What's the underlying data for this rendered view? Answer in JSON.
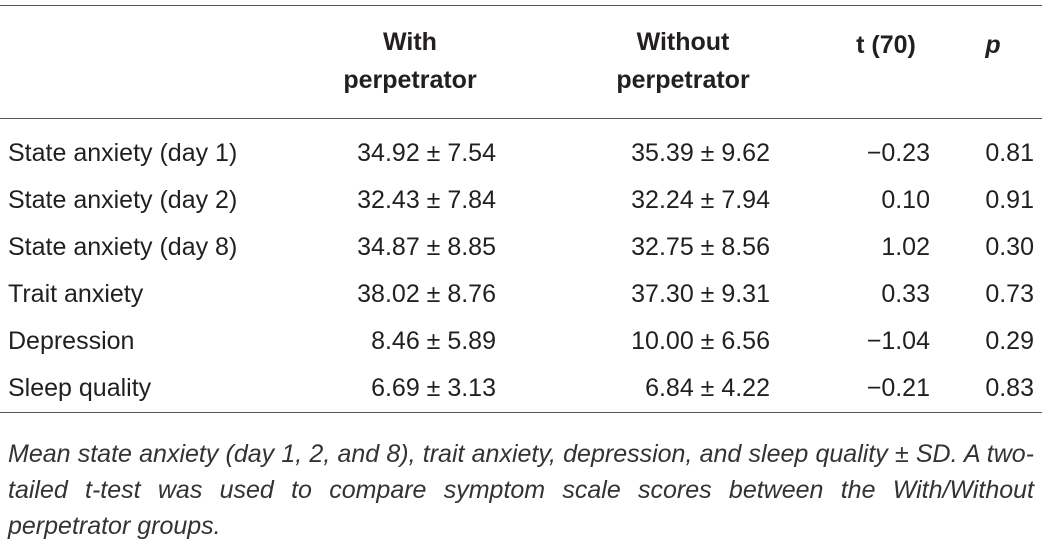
{
  "table": {
    "header": [
      "",
      "With perpetrator",
      "Without perpetrator",
      "t (70)",
      "p"
    ],
    "rows": [
      [
        "State anxiety (day 1)",
        "34.92 ± 7.54",
        "35.39 ± 9.62",
        "−0.23",
        "0.81"
      ],
      [
        "State anxiety (day 2)",
        "32.43 ± 7.84",
        "32.24 ± 7.94",
        "0.10",
        "0.91"
      ],
      [
        "State anxiety (day 8)",
        "34.87 ± 8.85",
        "32.75 ± 8.56",
        "1.02",
        "0.30"
      ],
      [
        "Trait anxiety",
        "38.02 ± 8.76",
        "37.30 ± 9.31",
        "0.33",
        "0.73"
      ],
      [
        "Depression",
        "8.46 ± 5.89",
        "10.00 ± 6.56",
        "−1.04",
        "0.29"
      ],
      [
        "Sleep quality",
        "6.69 ± 3.13",
        "6.84 ± 4.22",
        "−0.21",
        "0.83"
      ]
    ],
    "caption": "Mean state anxiety (day 1, 2, and 8), trait anxiety, depression, and sleep quality ± SD. A two-tailed t-test was used to compare symptom scale scores between the With/Without perpetrator groups."
  }
}
